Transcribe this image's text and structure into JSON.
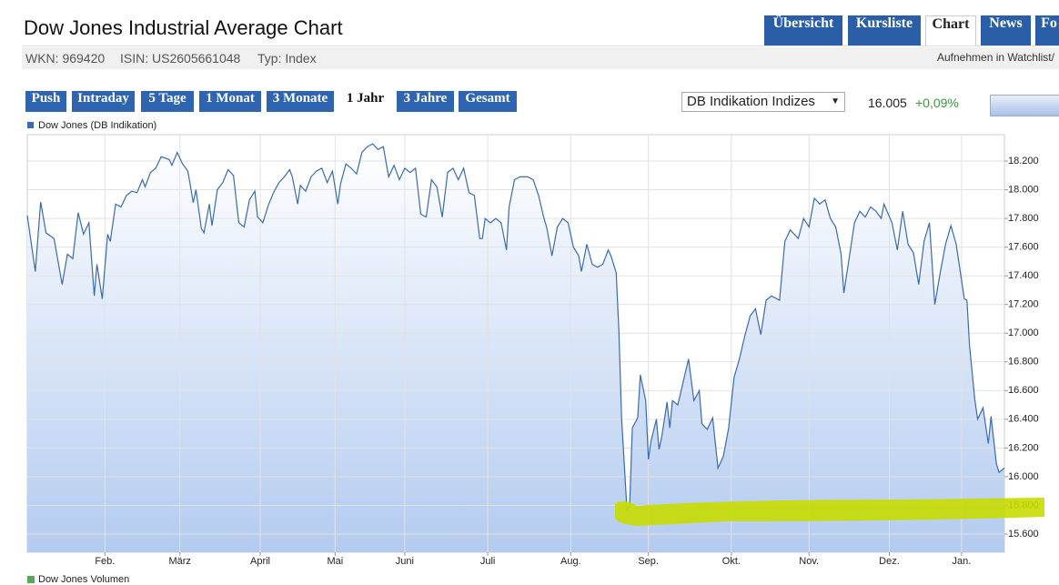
{
  "header": {
    "title": "Dow Jones Industrial Average Chart",
    "wkn": "WKN: 969420",
    "isin": "ISIN: US2605661048",
    "type": "Typ: Index",
    "watchlist": "Aufnehmen in Watchlist/"
  },
  "nav_tabs": [
    "Übersicht",
    "Kursliste",
    "Chart",
    "News",
    "Fo"
  ],
  "range_buttons": [
    "Push",
    "Intraday",
    "5 Tage",
    "1 Monat",
    "3 Monate",
    "1 Jahr",
    "3 Jahre",
    "Gesamt"
  ],
  "exchange_select": "DB Indikation Indizes",
  "quote": {
    "price": "16.005",
    "change": "+0,09%"
  },
  "volume_legend": "Dow Jones Volumen",
  "chart_data": {
    "type": "line",
    "x": [
      0,
      3,
      5,
      7,
      10,
      13,
      15,
      17,
      19,
      21,
      23,
      25,
      26,
      28,
      30,
      31,
      33,
      35,
      37,
      39,
      41,
      43,
      44,
      46,
      48,
      50,
      53,
      54,
      56,
      58,
      60,
      62,
      63,
      65,
      66,
      68,
      69,
      71,
      73,
      75,
      77,
      79,
      81,
      83,
      85,
      86,
      88,
      90,
      92,
      94,
      96,
      98,
      99,
      101,
      102,
      104,
      106,
      108,
      110,
      112,
      114,
      116,
      117,
      119,
      121,
      123,
      125,
      127,
      129,
      131,
      133,
      135,
      137,
      139,
      141,
      143,
      145,
      147,
      149,
      151,
      153,
      155,
      157,
      159,
      161,
      163,
      165,
      167,
      169,
      170,
      171,
      173,
      175,
      177,
      179,
      180,
      182,
      184,
      187,
      189,
      191,
      193,
      194,
      196,
      198,
      200,
      202,
      204,
      206,
      207,
      209,
      211,
      213,
      215,
      217,
      218,
      220,
      221,
      222,
      224,
      225,
      226,
      228,
      229,
      231,
      232,
      233,
      235,
      236,
      237,
      239,
      240,
      241,
      243,
      245,
      247,
      249,
      251,
      252,
      254,
      256,
      258,
      260,
      262,
      264,
      266,
      268,
      270,
      272,
      274,
      276,
      278,
      281,
      283,
      285,
      288,
      290,
      292,
      294,
      296,
      298,
      300,
      302,
      304,
      305,
      307,
      309,
      311,
      313,
      315,
      317,
      319,
      320,
      323,
      325,
      327,
      329,
      331,
      333,
      335,
      337,
      339,
      341,
      343,
      345,
      347,
      350,
      351,
      352,
      354,
      355,
      357,
      359,
      360,
      362,
      363,
      365
    ],
    "series": [
      {
        "name": "Dow Jones (DB Indikation)",
        "color": "#3a6ab0",
        "values": [
          17820,
          17430,
          17915,
          17700,
          17660,
          17340,
          17550,
          17520,
          17840,
          17690,
          17770,
          17260,
          17480,
          17240,
          17690,
          17640,
          17900,
          17880,
          17960,
          17990,
          17980,
          18070,
          18020,
          18120,
          18150,
          18230,
          18210,
          18170,
          18260,
          18180,
          18130,
          17910,
          18000,
          17730,
          17700,
          17900,
          17750,
          18000,
          18050,
          18140,
          18100,
          17770,
          17740,
          17930,
          17990,
          17810,
          17770,
          17890,
          17980,
          18050,
          18090,
          18140,
          18090,
          17900,
          18030,
          17990,
          18090,
          18130,
          18150,
          18050,
          18130,
          17900,
          18040,
          18180,
          18150,
          18110,
          18260,
          18300,
          18320,
          18280,
          18300,
          18090,
          18170,
          18070,
          18150,
          18120,
          18150,
          17830,
          17810,
          18070,
          18020,
          17810,
          18120,
          18150,
          18070,
          18150,
          17980,
          17960,
          17660,
          17660,
          17800,
          17770,
          17800,
          17770,
          17580,
          17880,
          18070,
          18090,
          18090,
          18070,
          17960,
          17800,
          17740,
          17540,
          17740,
          17800,
          17770,
          17600,
          17540,
          17430,
          17620,
          17480,
          17460,
          17480,
          17580,
          17540,
          17420,
          17010,
          16410,
          15770,
          15800,
          16340,
          16410,
          16710,
          16530,
          16120,
          16250,
          16400,
          16190,
          16280,
          16520,
          16340,
          16530,
          16500,
          16660,
          16820,
          16530,
          16600,
          16370,
          16330,
          16410,
          16060,
          16140,
          16340,
          16690,
          16820,
          16980,
          17120,
          17170,
          16990,
          17230,
          17260,
          17230,
          17640,
          17720,
          17660,
          17800,
          17740,
          17940,
          17900,
          17930,
          17800,
          17740,
          17550,
          17280,
          17520,
          17770,
          17850,
          17810,
          17880,
          17850,
          17800,
          17900,
          17770,
          17580,
          17850,
          17620,
          17560,
          17340,
          17640,
          17770,
          17200,
          17420,
          17620,
          17750,
          17620,
          17240,
          17230,
          16910,
          16530,
          16400,
          16480,
          16230,
          16420,
          16090,
          16030,
          16060
        ]
      }
    ],
    "xlim": [
      0,
      365
    ],
    "xticks": [
      {
        "value": 29,
        "label": "Feb."
      },
      {
        "value": 57,
        "label": "März"
      },
      {
        "value": 87,
        "label": "April"
      },
      {
        "value": 115,
        "label": "Mai"
      },
      {
        "value": 141,
        "label": "Juni"
      },
      {
        "value": 172,
        "label": "Juli"
      },
      {
        "value": 203,
        "label": "Aug."
      },
      {
        "value": 232,
        "label": "Sep."
      },
      {
        "value": 263,
        "label": "Okt."
      },
      {
        "value": 292,
        "label": "Nov."
      },
      {
        "value": 322,
        "label": "Dez."
      },
      {
        "value": 349,
        "label": "Jan."
      }
    ],
    "ylim": [
      15473,
      18384
    ],
    "yticks": [
      {
        "value": 15600,
        "label": "15.600"
      },
      {
        "value": 15800,
        "label": "15.800"
      },
      {
        "value": 16000,
        "label": "16.000"
      },
      {
        "value": 16200,
        "label": "16.200"
      },
      {
        "value": 16400,
        "label": "16.400"
      },
      {
        "value": 16600,
        "label": "16.600"
      },
      {
        "value": 16800,
        "label": "16.800"
      },
      {
        "value": 17000,
        "label": "17.000"
      },
      {
        "value": 17200,
        "label": "17.200"
      },
      {
        "value": 17400,
        "label": "17.400"
      },
      {
        "value": 17600,
        "label": "17.600"
      },
      {
        "value": 17800,
        "label": "17.800"
      },
      {
        "value": 18000,
        "label": "18.000"
      },
      {
        "value": 18200,
        "label": "18.200"
      }
    ],
    "grid": true
  }
}
